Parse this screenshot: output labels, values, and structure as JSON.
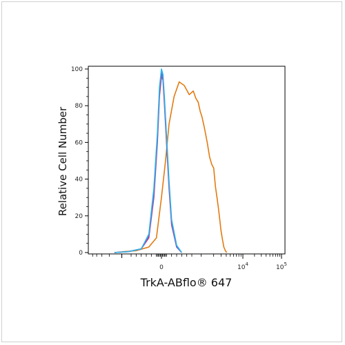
{
  "chart_data": {
    "type": "line",
    "xlabel": "TrkA-ABflo® 647",
    "ylabel": "Relative Cell Number",
    "ylim": [
      0,
      100
    ],
    "xlim": [
      -500,
      105000
    ],
    "x_scale": "biexponential",
    "y_ticks": [
      0,
      20,
      40,
      60,
      80,
      100
    ],
    "y_tick_labels": [
      "0",
      "20",
      "40",
      "60",
      "80",
      "100"
    ],
    "x_tick_labels": [
      {
        "x": 0,
        "label": "0"
      },
      {
        "x": 10000,
        "label": "10",
        "sup": "4"
      },
      {
        "x": 100000,
        "label": "10",
        "sup": "5"
      }
    ],
    "grid": false,
    "legend": "none",
    "series": [
      {
        "color": "#e27a10",
        "x": [
          -1500,
          -900,
          -500,
          -250,
          -100,
          0,
          80,
          150,
          250,
          350,
          450,
          550,
          650,
          750,
          850,
          950,
          1050,
          1200,
          1400,
          1600,
          1800,
          2000,
          2200,
          2400,
          2600,
          2800,
          3000,
          3200,
          3500,
          3800,
          4100
        ],
        "y": [
          0,
          0.5,
          1,
          3,
          8,
          30,
          50,
          70,
          85,
          93,
          91,
          86,
          88,
          84,
          82,
          77,
          74,
          68,
          60,
          52,
          48,
          46,
          36,
          30,
          24,
          18,
          12,
          8,
          3,
          1,
          0
        ]
      },
      {
        "color": "#e0306e",
        "x": [
          -1500,
          -700,
          -400,
          -250,
          -150,
          -80,
          -40,
          0,
          30,
          60,
          100,
          150,
          200,
          300,
          400
        ],
        "y": [
          0,
          0.5,
          2,
          8,
          30,
          60,
          85,
          96,
          94,
          80,
          60,
          35,
          15,
          3,
          0
        ]
      },
      {
        "color": "#6a5cd6",
        "x": [
          -1500,
          -700,
          -400,
          -250,
          -150,
          -80,
          -40,
          0,
          30,
          60,
          100,
          150,
          200,
          300,
          400
        ],
        "y": [
          0,
          0.5,
          2,
          9,
          32,
          62,
          87,
          98,
          95,
          82,
          62,
          37,
          16,
          3,
          0
        ]
      },
      {
        "color": "#2fb4e6",
        "x": [
          -1500,
          -700,
          -400,
          -250,
          -150,
          -80,
          -40,
          0,
          30,
          60,
          100,
          150,
          200,
          300,
          400
        ],
        "y": [
          0,
          0.5,
          2,
          10,
          35,
          65,
          90,
          100,
          97,
          84,
          64,
          39,
          18,
          4,
          0
        ]
      }
    ]
  }
}
